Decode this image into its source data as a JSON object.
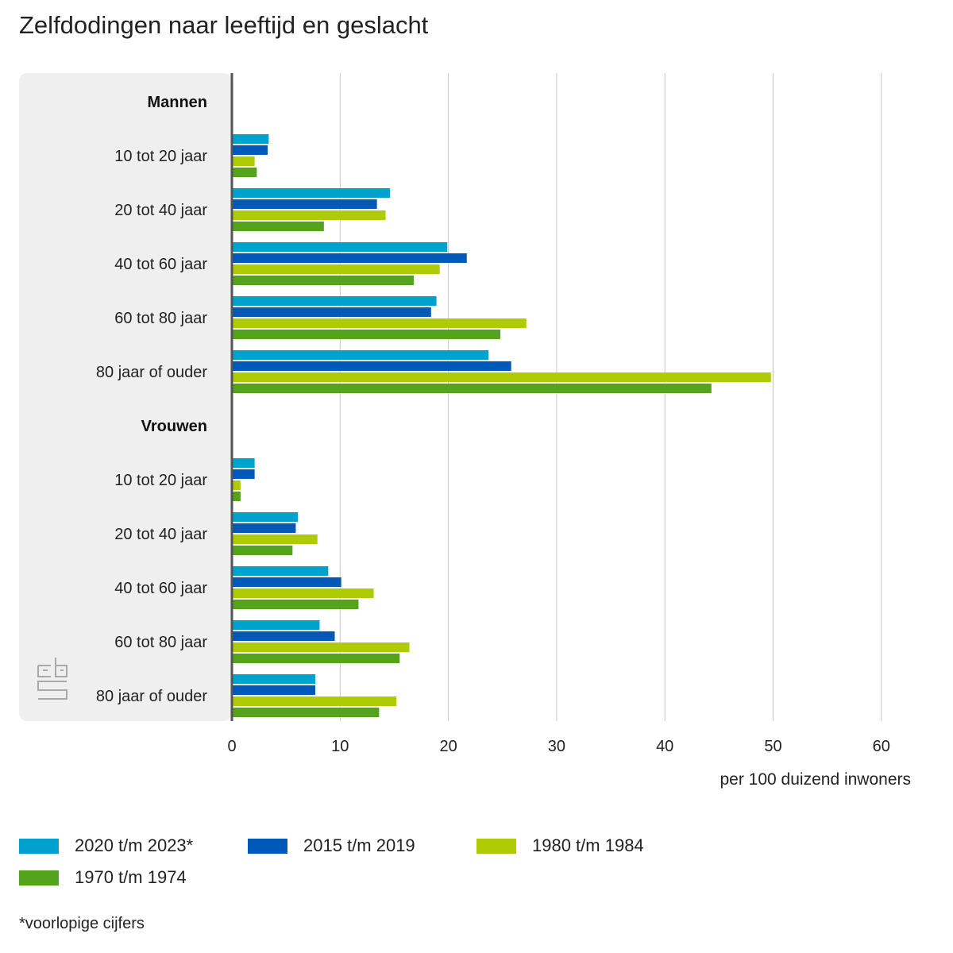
{
  "title": "Zelfdodingen naar leeftijd en geslacht",
  "footnote": "*voorlopige cijfers",
  "logo_icon": "cbs-logo-icon",
  "chart_data": {
    "type": "bar",
    "orientation": "horizontal",
    "xlabel": "per 100 duizend inwoners",
    "xlim": [
      0,
      60
    ],
    "xticks": [
      0,
      10,
      20,
      30,
      40,
      50,
      60
    ],
    "grid": true,
    "legend_position": "bottom",
    "groups": [
      {
        "name": "Mannen",
        "categories": [
          "10 tot 20 jaar",
          "20 tot 40 jaar",
          "40 tot 60 jaar",
          "60 tot 80 jaar",
          "80 jaar of ouder"
        ]
      },
      {
        "name": "Vrouwen",
        "categories": [
          "10 tot 20 jaar",
          "20 tot 40 jaar",
          "40 tot 60 jaar",
          "60 tot 80 jaar",
          "80 jaar of ouder"
        ]
      }
    ],
    "series": [
      {
        "name": "2020 t/m 2023*",
        "color": "#00a1cd",
        "values": [
          [
            3.4,
            14.6,
            19.9,
            18.9,
            23.7
          ],
          [
            2.1,
            6.1,
            8.9,
            8.1,
            7.7
          ]
        ]
      },
      {
        "name": "2015 t/m 2019",
        "color": "#0058b8",
        "values": [
          [
            3.3,
            13.4,
            21.7,
            18.4,
            25.8
          ],
          [
            2.1,
            5.9,
            10.1,
            9.5,
            7.7
          ]
        ]
      },
      {
        "name": "1980 t/m 1984",
        "color": "#afcb05",
        "values": [
          [
            2.1,
            14.2,
            19.2,
            27.2,
            49.8
          ],
          [
            0.8,
            7.9,
            13.1,
            16.4,
            15.2
          ]
        ]
      },
      {
        "name": "1970 t/m 1974",
        "color": "#53a31d",
        "values": [
          [
            2.3,
            8.5,
            16.8,
            24.8,
            44.3
          ],
          [
            0.8,
            5.6,
            11.7,
            15.5,
            13.6
          ]
        ]
      }
    ]
  }
}
